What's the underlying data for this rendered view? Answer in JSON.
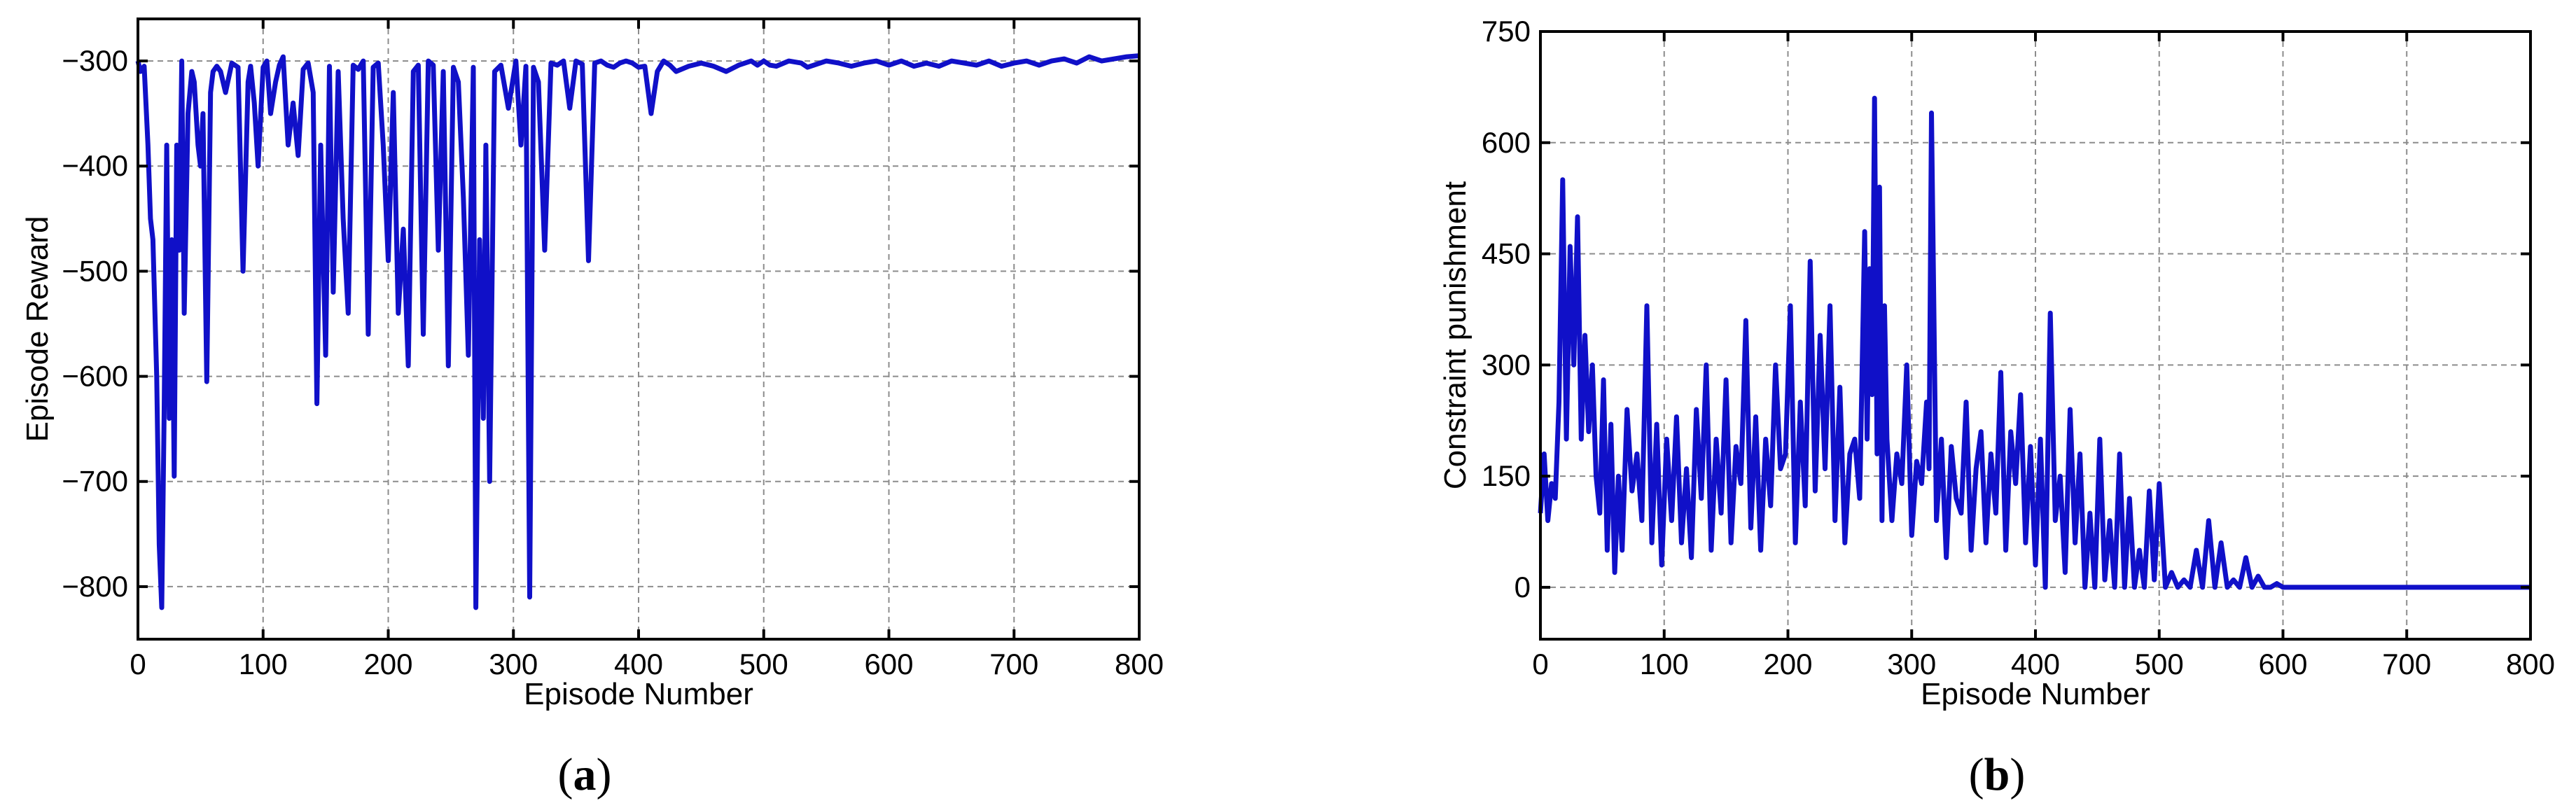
{
  "chart_data": [
    {
      "type": "line",
      "panel_label": "a",
      "title": "",
      "xlabel": "Episode Number",
      "ylabel": "Episode Reward",
      "xlim": [
        0,
        800
      ],
      "ylim": [
        -850,
        -260
      ],
      "xticks": [
        0,
        100,
        200,
        300,
        400,
        500,
        600,
        700,
        800
      ],
      "yticks": [
        -300,
        -400,
        -500,
        -600,
        -700,
        -800
      ],
      "ytick_labels": [
        "−300",
        "−400",
        "−500",
        "−600",
        "−700",
        "−800"
      ],
      "grid": true,
      "color": "#1010c8",
      "series": [
        {
          "x": [
            0,
            2,
            5,
            8,
            10,
            12,
            15,
            17,
            19,
            21,
            23,
            25,
            27,
            29,
            31,
            33,
            35,
            37,
            40,
            43,
            45,
            48,
            50,
            52,
            55,
            58,
            60,
            63,
            66,
            70,
            75,
            80,
            84,
            88,
            90,
            93,
            96,
            100,
            103,
            106,
            110,
            113,
            116,
            120,
            124,
            128,
            132,
            136,
            140,
            143,
            146,
            150,
            153,
            156,
            160,
            164,
            168,
            172,
            176,
            180,
            184,
            188,
            192,
            196,
            200,
            204,
            208,
            212,
            216,
            220,
            224,
            228,
            232,
            236,
            240,
            244,
            248,
            252,
            256,
            260,
            264,
            268,
            270,
            273,
            276,
            278,
            281,
            285,
            290,
            296,
            302,
            306,
            310,
            313,
            316,
            320,
            325,
            330,
            335,
            340,
            345,
            350,
            355,
            360,
            365,
            370,
            375,
            380,
            385,
            390,
            395,
            400,
            405,
            410,
            415,
            420,
            425,
            430,
            440,
            450,
            460,
            470,
            480,
            490,
            495,
            500,
            505,
            510,
            520,
            530,
            535,
            540,
            550,
            560,
            570,
            580,
            590,
            600,
            610,
            620,
            630,
            640,
            650,
            660,
            670,
            680,
            690,
            700,
            710,
            720,
            730,
            740,
            750,
            760,
            770,
            780,
            790,
            800
          ],
          "y": [
            -300,
            -310,
            -305,
            -380,
            -450,
            -470,
            -600,
            -760,
            -820,
            -630,
            -380,
            -640,
            -470,
            -695,
            -380,
            -480,
            -300,
            -540,
            -350,
            -310,
            -320,
            -380,
            -400,
            -350,
            -605,
            -330,
            -310,
            -305,
            -310,
            -330,
            -302,
            -306,
            -500,
            -320,
            -305,
            -340,
            -400,
            -306,
            -300,
            -350,
            -320,
            -304,
            -296,
            -380,
            -340,
            -390,
            -308,
            -302,
            -330,
            -626,
            -380,
            -580,
            -305,
            -520,
            -310,
            -450,
            -540,
            -304,
            -308,
            -300,
            -560,
            -306,
            -302,
            -380,
            -490,
            -330,
            -540,
            -460,
            -590,
            -310,
            -304,
            -560,
            -300,
            -304,
            -480,
            -310,
            -590,
            -306,
            -320,
            -430,
            -580,
            -306,
            -820,
            -470,
            -640,
            -380,
            -700,
            -310,
            -304,
            -345,
            -300,
            -380,
            -305,
            -810,
            -306,
            -320,
            -480,
            -302,
            -304,
            -300,
            -345,
            -300,
            -303,
            -490,
            -302,
            -300,
            -304,
            -306,
            -302,
            -300,
            -302,
            -306,
            -305,
            -350,
            -310,
            -300,
            -304,
            -310,
            -305,
            -302,
            -305,
            -310,
            -304,
            -300,
            -304,
            -300,
            -304,
            -305,
            -300,
            -302,
            -306,
            -304,
            -300,
            -302,
            -305,
            -302,
            -300,
            -304,
            -300,
            -305,
            -302,
            -305,
            -300,
            -302,
            -304,
            -300,
            -305,
            -302,
            -300,
            -304,
            -300,
            -298,
            -302,
            -296,
            -300,
            -298,
            -296,
            -295
          ]
        }
      ]
    },
    {
      "type": "line",
      "panel_label": "b",
      "title": "",
      "xlabel": "Episode Number",
      "ylabel": "Constraint punishment",
      "xlim": [
        0,
        800
      ],
      "ylim": [
        -70,
        750
      ],
      "xticks": [
        0,
        100,
        200,
        300,
        400,
        500,
        600,
        700,
        800
      ],
      "yticks": [
        0,
        150,
        300,
        450,
        600,
        750
      ],
      "ytick_labels": [
        "0",
        "150",
        "300",
        "450",
        "600",
        "750"
      ],
      "grid": true,
      "color": "#1010c8",
      "series": [
        {
          "x": [
            0,
            3,
            6,
            9,
            12,
            15,
            18,
            21,
            24,
            27,
            30,
            33,
            36,
            39,
            42,
            45,
            48,
            51,
            54,
            57,
            60,
            63,
            66,
            70,
            74,
            78,
            82,
            86,
            90,
            94,
            98,
            102,
            106,
            110,
            114,
            118,
            122,
            126,
            130,
            134,
            138,
            142,
            146,
            150,
            154,
            158,
            162,
            166,
            170,
            174,
            178,
            182,
            186,
            190,
            194,
            198,
            202,
            206,
            210,
            214,
            218,
            222,
            226,
            230,
            234,
            238,
            242,
            246,
            250,
            254,
            258,
            262,
            264,
            266,
            268,
            270,
            272,
            274,
            276,
            278,
            280,
            284,
            288,
            292,
            296,
            300,
            304,
            308,
            312,
            314,
            316,
            320,
            324,
            328,
            332,
            336,
            340,
            344,
            348,
            352,
            356,
            360,
            364,
            368,
            372,
            376,
            380,
            384,
            388,
            392,
            396,
            400,
            404,
            408,
            412,
            416,
            420,
            424,
            428,
            432,
            436,
            440,
            444,
            448,
            452,
            456,
            460,
            464,
            468,
            472,
            476,
            480,
            484,
            488,
            492,
            496,
            500,
            505,
            510,
            515,
            520,
            525,
            530,
            535,
            540,
            545,
            550,
            555,
            560,
            565,
            570,
            575,
            580,
            585,
            590,
            595,
            600,
            650,
            700,
            750,
            800
          ],
          "y": [
            100,
            180,
            90,
            140,
            120,
            250,
            550,
            200,
            460,
            300,
            500,
            200,
            340,
            210,
            300,
            150,
            100,
            280,
            50,
            220,
            20,
            150,
            50,
            240,
            130,
            180,
            90,
            380,
            60,
            220,
            30,
            200,
            90,
            230,
            60,
            160,
            40,
            240,
            120,
            300,
            50,
            200,
            100,
            280,
            60,
            190,
            140,
            360,
            80,
            230,
            50,
            200,
            110,
            300,
            160,
            180,
            380,
            60,
            250,
            110,
            440,
            130,
            340,
            160,
            380,
            90,
            270,
            60,
            180,
            200,
            120,
            480,
            200,
            430,
            260,
            660,
            180,
            540,
            90,
            380,
            200,
            90,
            180,
            140,
            300,
            70,
            170,
            140,
            250,
            160,
            640,
            90,
            200,
            40,
            190,
            120,
            100,
            250,
            50,
            160,
            210,
            60,
            180,
            100,
            290,
            50,
            210,
            140,
            260,
            60,
            190,
            30,
            200,
            0,
            370,
            90,
            150,
            20,
            240,
            60,
            180,
            0,
            100,
            0,
            200,
            10,
            90,
            0,
            180,
            0,
            120,
            0,
            50,
            0,
            130,
            10,
            140,
            0,
            20,
            0,
            10,
            0,
            50,
            0,
            90,
            0,
            60,
            0,
            10,
            0,
            40,
            0,
            15,
            0,
            0,
            5,
            0,
            0,
            0,
            0,
            0
          ]
        }
      ]
    }
  ]
}
